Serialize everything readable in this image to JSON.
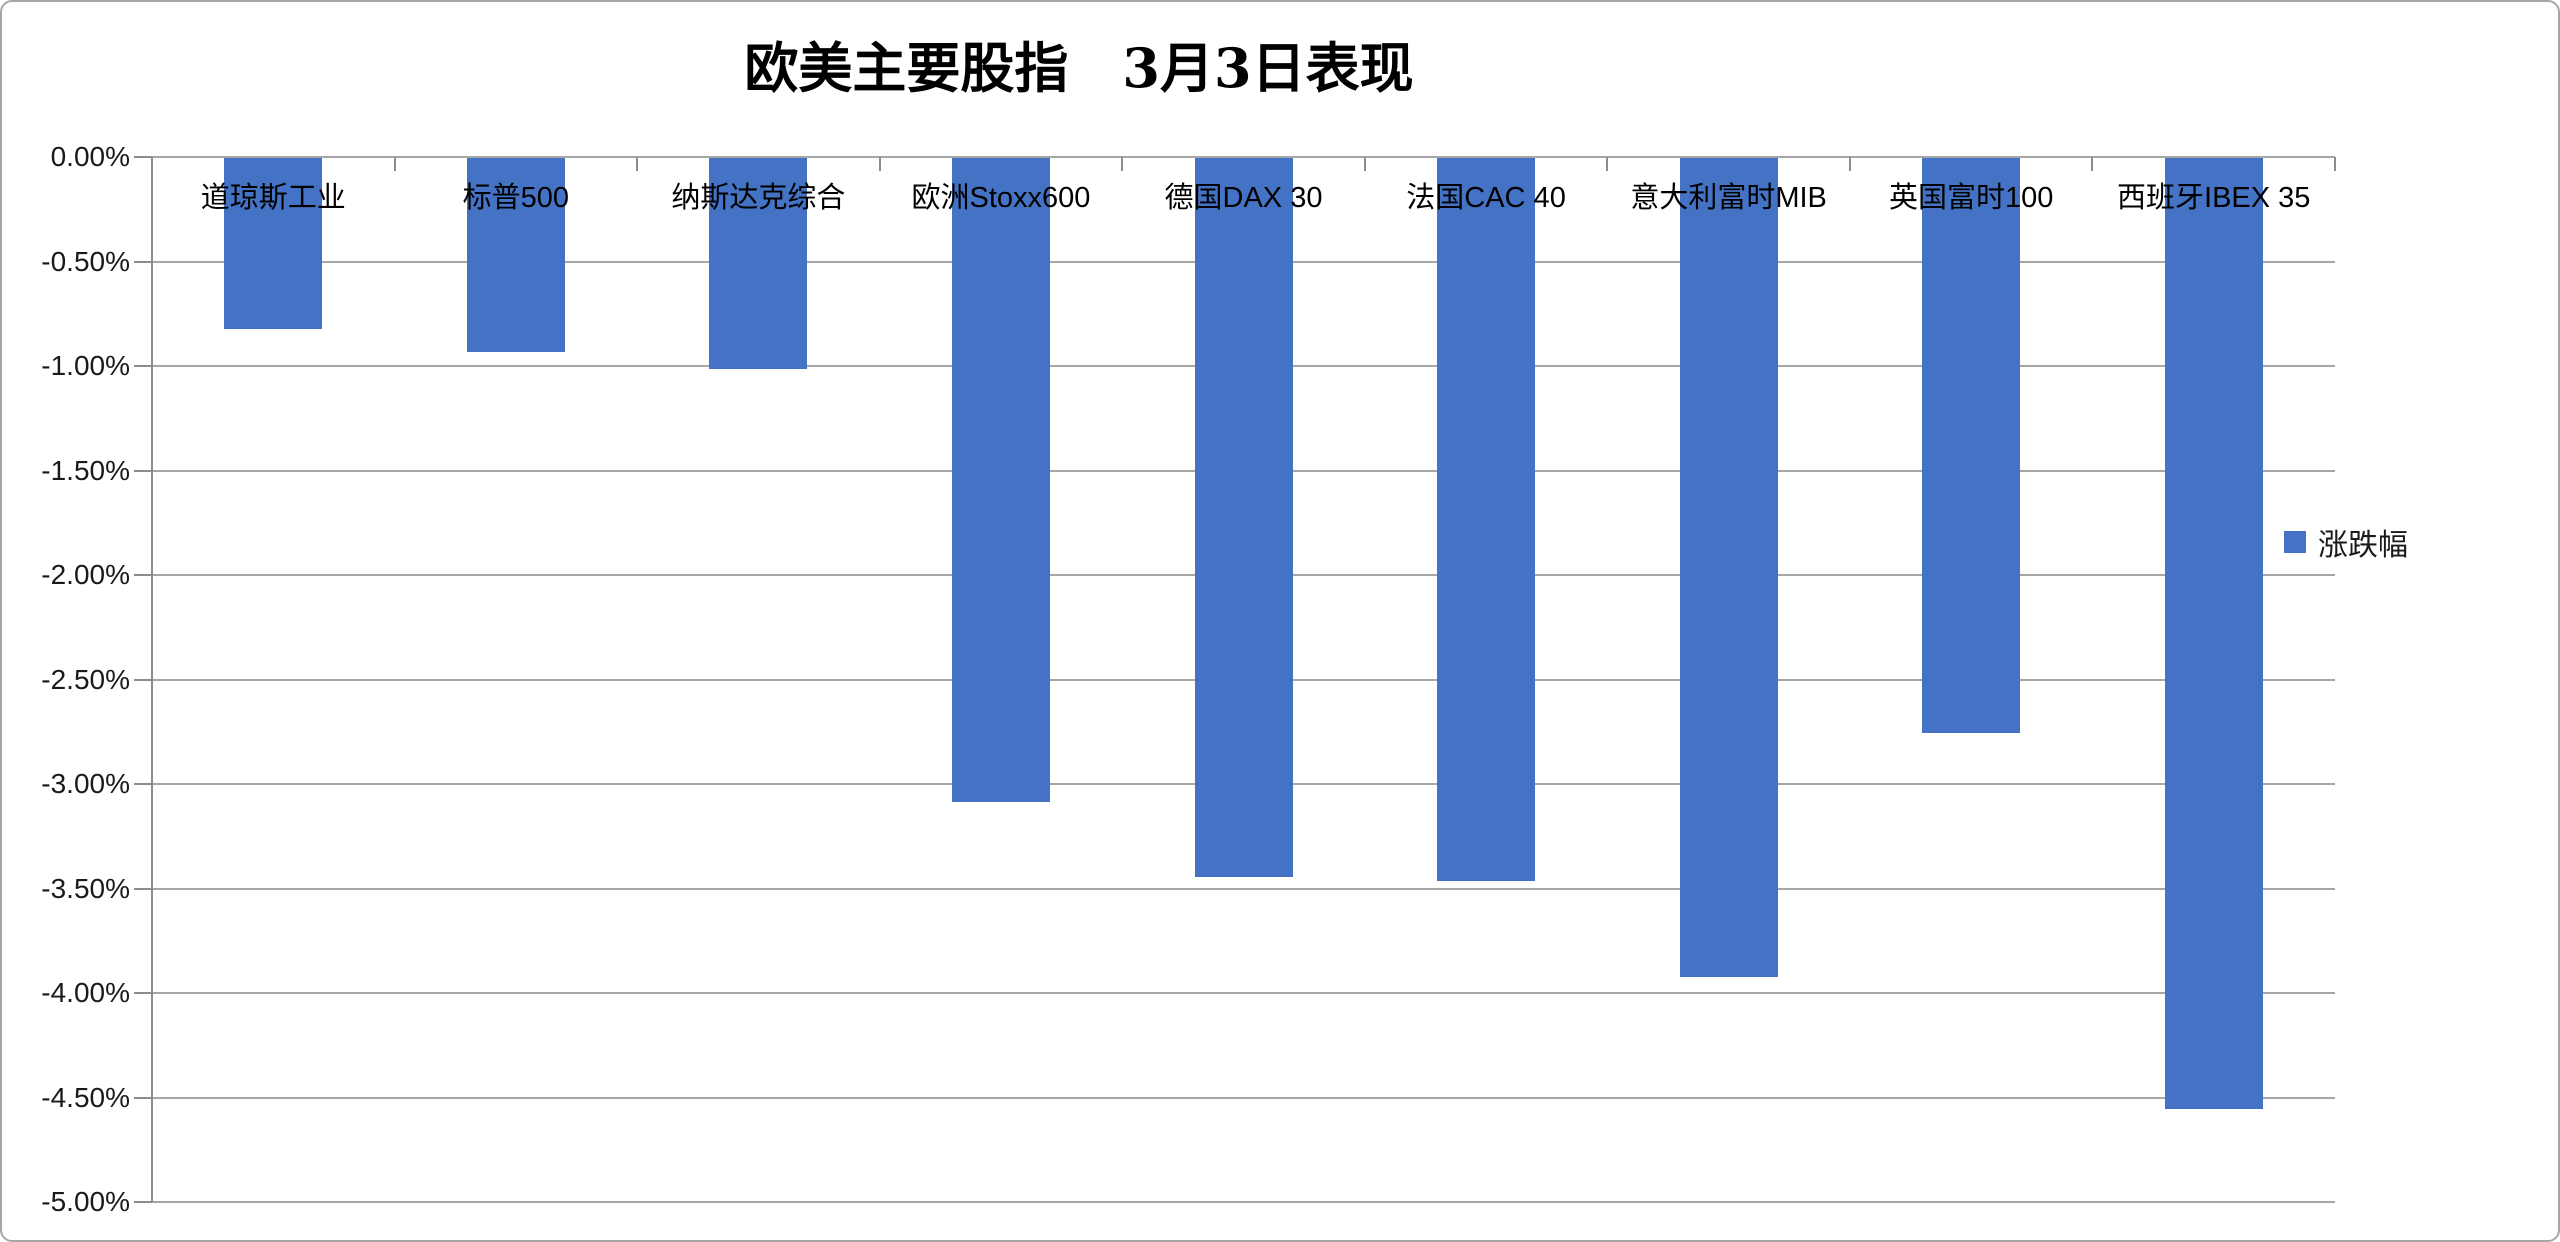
{
  "title": "欧美主要股指　3月3日表现",
  "legend": {
    "label": "涨跌幅",
    "marker_color": "#4472C4"
  },
  "colors": {
    "bar": "#4472C4",
    "gridline": "#a6a6a6",
    "axis": "#8c8c8c",
    "border": "#a6a6a6",
    "text": "#000000"
  },
  "chart_data": {
    "type": "bar",
    "title": "欧美主要股指　3月3日表现",
    "series_name": "涨跌幅",
    "categories": [
      "道琼斯工业",
      "标普500",
      "纳斯达克综合",
      "欧洲Stoxx600",
      "德国DAX 30",
      "法国CAC 40",
      "意大利富时MIB",
      "英国富时100",
      "西班牙IBEX 35"
    ],
    "values": [
      -0.82,
      -0.93,
      -1.01,
      -3.08,
      -3.44,
      -3.46,
      -3.92,
      -2.75,
      -4.55
    ],
    "xlabel": "",
    "ylabel": "",
    "ylim": [
      -5.0,
      0.0
    ],
    "ytick_step": 0.5,
    "ytick_labels": [
      "0.00%",
      "-0.50%",
      "-1.00%",
      "-1.50%",
      "-2.00%",
      "-2.50%",
      "-3.00%",
      "-3.50%",
      "-4.00%",
      "-4.50%",
      "-5.00%"
    ],
    "grid": true,
    "legend_position": "right",
    "bar_color": "#4472C4"
  }
}
